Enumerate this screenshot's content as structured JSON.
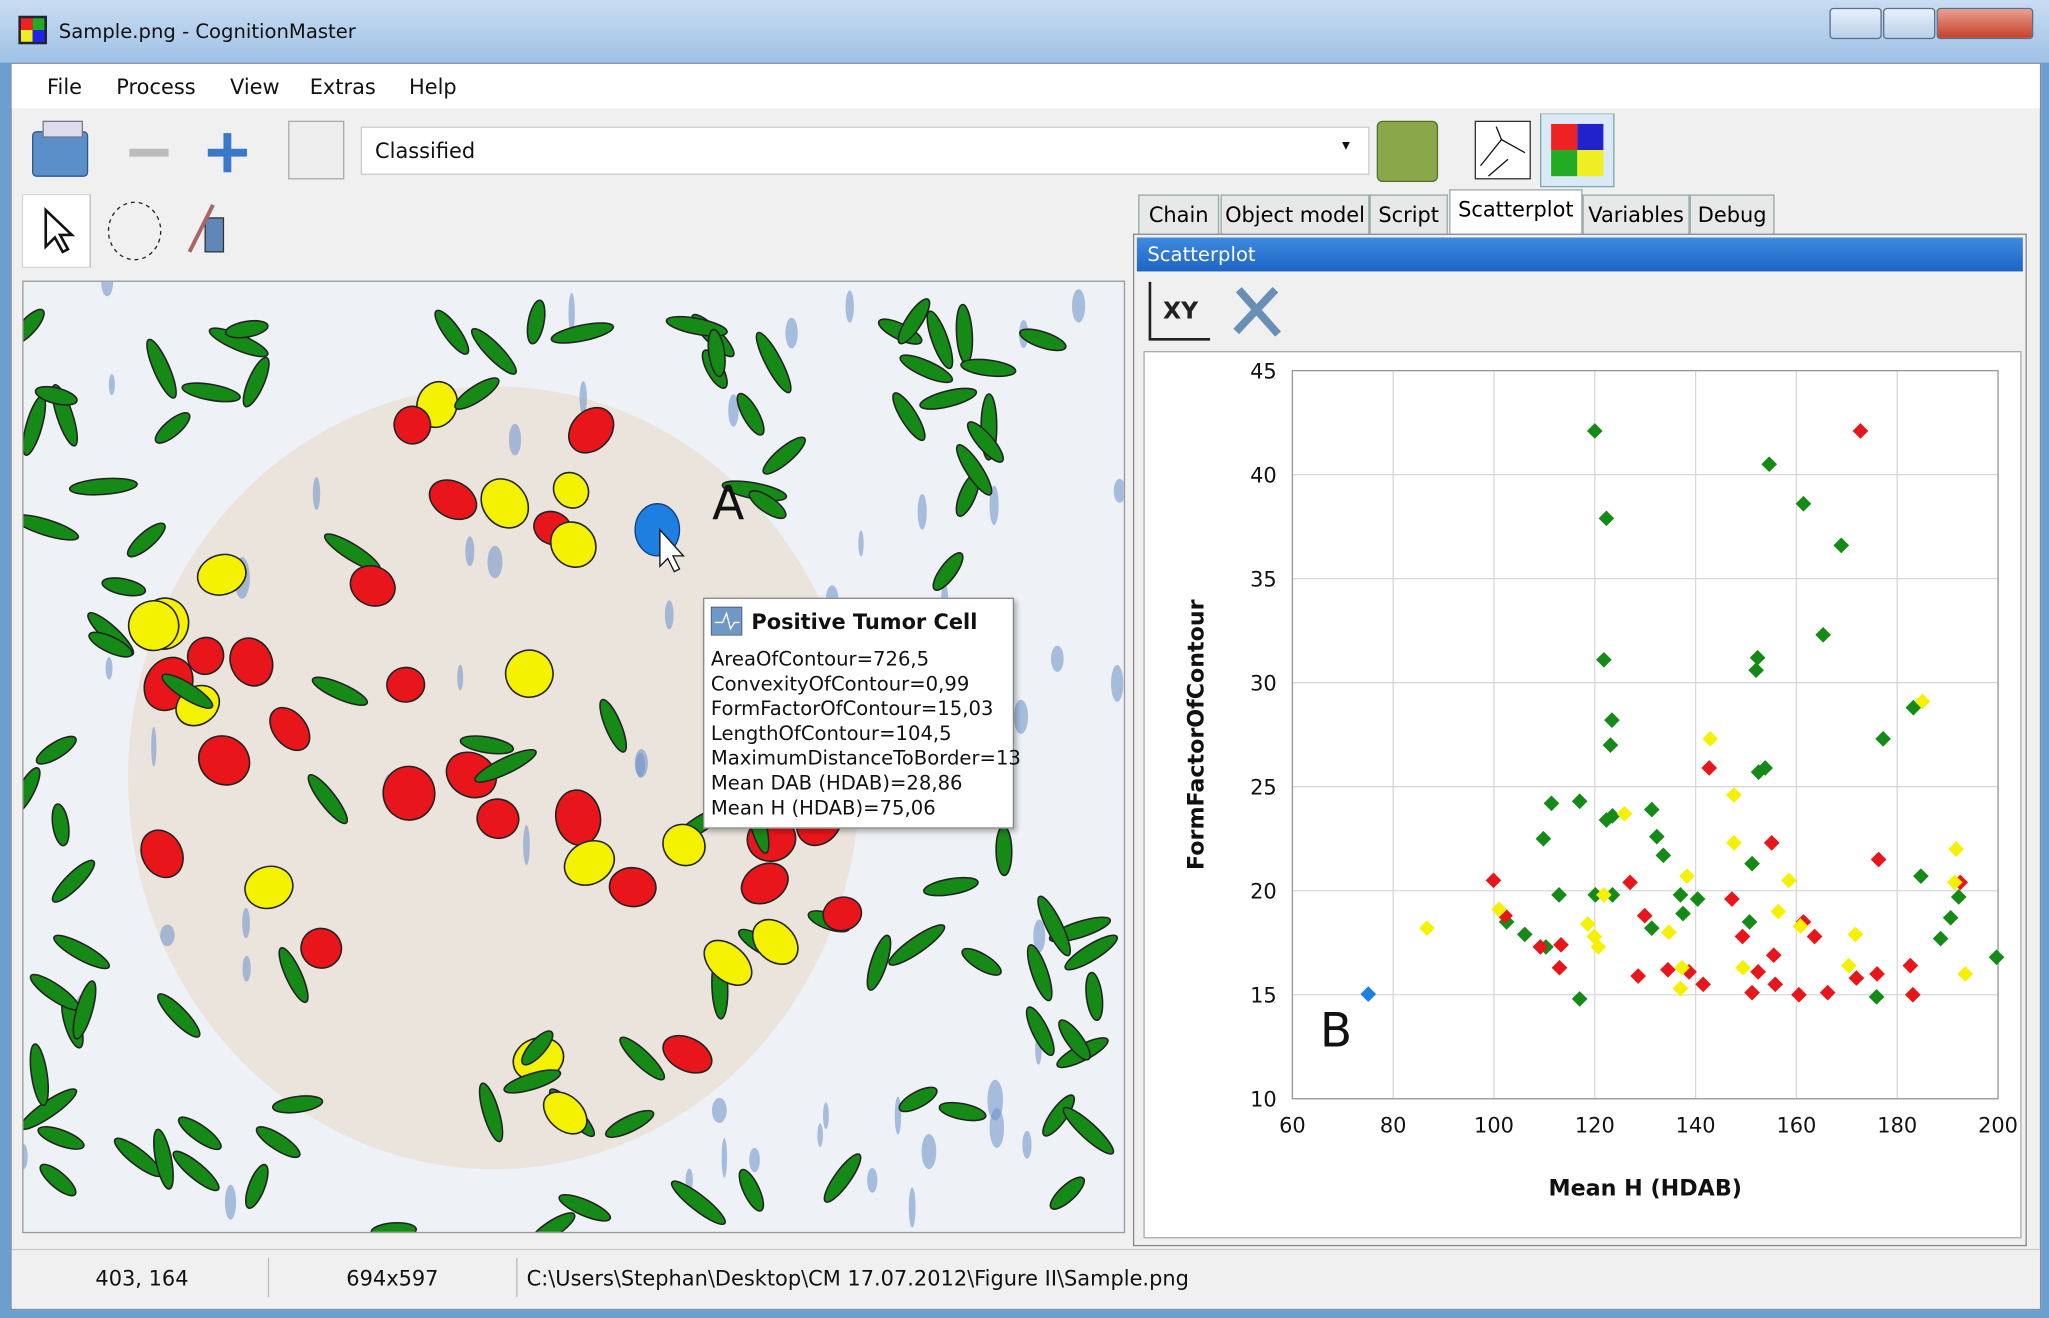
{
  "window": {
    "title": "Sample.png - CognitionMaster"
  },
  "menu": [
    "File",
    "Process",
    "View",
    "Extras",
    "Help"
  ],
  "toolbar": {
    "view_mode": "Classified"
  },
  "tabs": [
    "Chain",
    "Object model",
    "Script",
    "Scatterplot",
    "Variables",
    "Debug"
  ],
  "panel": {
    "title": "Scatterplot",
    "axis_button": "XY"
  },
  "image": {
    "marker": "A",
    "tooltip": {
      "title": "Positive Tumor Cell",
      "lines": [
        "AreaOfContour=726,5",
        "ConvexityOfContour=0,99",
        "FormFactorOfContour=15,03",
        "LengthOfContour=104,5",
        "MaximumDistanceToBorder=13",
        "Mean DAB (HDAB)=28,86",
        "Mean H (HDAB)=75,06"
      ]
    }
  },
  "chart_data": {
    "type": "scatter",
    "xlabel": "Mean H (HDAB)",
    "ylabel": "FormFactorOfContour",
    "annotation": "B",
    "xlim": [
      60,
      200
    ],
    "ylim": [
      10,
      45
    ],
    "xticks": [
      60,
      80,
      100,
      120,
      140,
      160,
      180,
      200
    ],
    "yticks": [
      10,
      15,
      20,
      25,
      30,
      35,
      40,
      45
    ],
    "grid": true,
    "series": [
      {
        "color": "#168a16",
        "x": [
          120,
          122.3,
          121.8,
          123.4,
          123.1,
          122.3,
          123.5,
          111.4,
          117,
          109.8,
          131.3,
          132.3,
          133.6,
          112.9,
          120.1,
          123.5,
          137,
          140.4,
          137.5,
          131.3,
          106.1,
          102.5,
          110.3,
          117,
          154.6,
          161.4,
          168.9,
          165.3,
          152.3,
          152,
          153.8,
          152.5,
          151.2,
          150.7,
          183.2,
          177.2,
          184.7,
          192.2,
          190.6,
          188.6,
          199.7,
          175.9
        ],
        "values": [
          42.1,
          37.9,
          31.1,
          28.2,
          27,
          23.4,
          23.6,
          24.2,
          24.3,
          22.5,
          23.9,
          22.6,
          21.7,
          19.8,
          19.8,
          19.8,
          19.8,
          19.6,
          18.9,
          18.2,
          17.9,
          18.5,
          17.3,
          14.8,
          40.5,
          38.6,
          36.6,
          32.3,
          31.2,
          30.6,
          25.9,
          25.7,
          21.3,
          18.5,
          28.8,
          27.3,
          20.7,
          19.7,
          18.7,
          17.7,
          16.8,
          14.9
        ]
      },
      {
        "color": "#e8161a",
        "x": [
          172.7,
          142.7,
          155.1,
          176.3,
          99.9,
          102.2,
          109.2,
          113,
          113.3,
          127,
          129.9,
          128.6,
          134.5,
          138.7,
          141.5,
          147.2,
          149.3,
          152.4,
          155.5,
          155.8,
          151.2,
          160.5,
          163.6,
          166.2,
          171.9,
          176,
          182.6,
          183.1,
          192.5,
          161.4
        ],
        "values": [
          42.1,
          25.9,
          22.3,
          21.5,
          20.5,
          18.8,
          17.3,
          16.3,
          17.4,
          20.4,
          18.8,
          15.9,
          16.2,
          16.1,
          15.5,
          19.6,
          17.8,
          16.1,
          16.9,
          15.5,
          15.1,
          15,
          17.8,
          15.1,
          15.8,
          16,
          16.4,
          15,
          20.4,
          18.5
        ]
      },
      {
        "color": "#f4f200",
        "x": [
          86.7,
          101,
          118.6,
          119.9,
          120.7,
          121.8,
          125.9,
          138.3,
          134.7,
          137.3,
          137,
          142.9,
          147.6,
          147.6,
          149.4,
          156.4,
          158.5,
          160.8,
          171.7,
          170.4,
          185,
          191.7,
          191.4,
          193.5
        ],
        "values": [
          18.2,
          19.1,
          18.4,
          17.8,
          17.3,
          19.8,
          23.7,
          20.7,
          18,
          16.3,
          15.3,
          27.3,
          24.6,
          22.3,
          16.3,
          19,
          20.5,
          18.3,
          17.9,
          16.4,
          29.1,
          22,
          20.4,
          16
        ]
      },
      {
        "color": "#1e7fe0",
        "x": [
          75.06
        ],
        "values": [
          15.03
        ]
      }
    ]
  },
  "status_bar": {
    "cursor": "403, 164",
    "size": "694x597",
    "path": "C:\\Users\\Stephan\\Desktop\\CM 17.07.2012\\Figure II\\Sample.png"
  }
}
